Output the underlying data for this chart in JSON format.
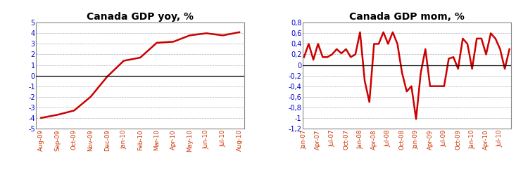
{
  "yoy_labels": [
    "Aug-09",
    "Sep-09",
    "Oct-09",
    "Nov-09",
    "Dec-09",
    "Jan-10",
    "Feb-10",
    "Mar-10",
    "Apr-10",
    "May-10",
    "Jun-10",
    "Jul-10",
    "Aug-10"
  ],
  "yoy_values": [
    -4.0,
    -3.7,
    -3.3,
    -2.0,
    -0.1,
    1.4,
    1.7,
    3.1,
    3.2,
    3.8,
    4.0,
    3.8,
    4.1
  ],
  "yoy_title": "Canada GDP yoy, %",
  "yoy_ylim": [
    -5,
    5
  ],
  "yoy_yticks": [
    -5,
    -4,
    -3,
    -2,
    -1,
    0,
    1,
    2,
    3,
    4,
    5
  ],
  "mom_values": [
    0.15,
    0.4,
    0.1,
    0.4,
    0.2,
    0.15,
    0.2,
    0.3,
    0.2,
    0.3,
    0.15,
    0.2,
    0.62,
    -0.3,
    -0.7,
    0.4,
    0.4,
    0.62,
    0.4,
    0.62,
    0.4,
    -0.15,
    -0.5,
    -0.4,
    -1.02,
    -0.15,
    0.3,
    -0.4,
    -0.4,
    -0.4,
    -0.4,
    0.12,
    0.15,
    -0.07,
    0.5,
    0.4,
    -0.07,
    0.5,
    0.5,
    0.2,
    0.6,
    0.5,
    0.3,
    -0.07,
    0.3
  ],
  "mom_tick_pos": [
    0,
    3,
    6,
    9,
    12,
    15,
    18,
    21,
    24,
    27,
    30,
    33,
    36,
    39,
    42
  ],
  "mom_tick_labels": [
    "Jan-07",
    "Apr-07",
    "Jul-07",
    "Oct-07",
    "Jan-08",
    "Apr-08",
    "Jul-08",
    "Oct-08",
    "Jan-09",
    "Apr-09",
    "Jul-09",
    "Oct-09",
    "Jan-10",
    "Apr-10",
    "Jul-10"
  ],
  "mom_title": "Canada GDP mom, %",
  "mom_ylim": [
    -1.2,
    0.8
  ],
  "mom_yticks": [
    -1.2,
    -1.0,
    -0.8,
    -0.6,
    -0.4,
    -0.2,
    0.0,
    0.2,
    0.4,
    0.6,
    0.8
  ],
  "line_color": "#cc0000",
  "line_width": 1.8,
  "title_fontsize": 10,
  "tick_color_x": "#cc3300",
  "tick_color_y": "#0000cc",
  "bg_color": "#ffffff",
  "plot_bg": "#ffffff",
  "grid_color": "#aaaaaa",
  "border_color": "#888888"
}
